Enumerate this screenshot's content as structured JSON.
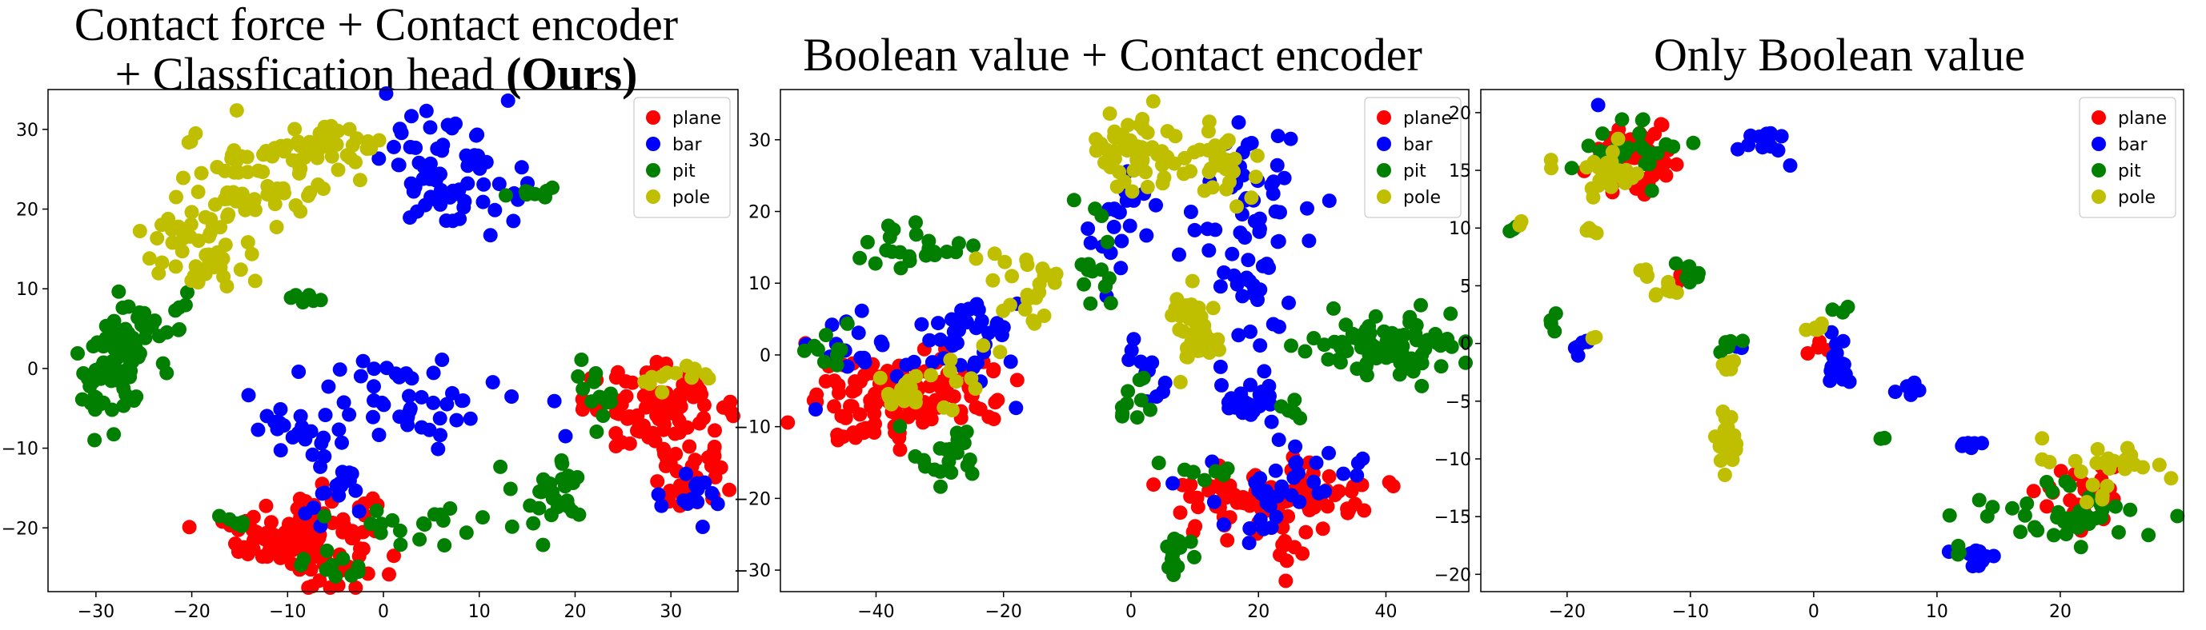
{
  "figure": {
    "panels_titles": [
      {
        "line1": "Contact force + Contact encoder",
        "line2_plain": "+ Classfication head ",
        "line2_bold": "(Ours)"
      },
      {
        "line1": "Boolean value + Contact encoder"
      },
      {
        "line1": "Only Boolean value"
      }
    ]
  },
  "chart_data": [
    {
      "type": "scatter",
      "title": "Contact force + Contact encoder + Classfication head (Ours)",
      "xlim": [
        -35,
        37
      ],
      "ylim": [
        -28,
        35
      ],
      "xticks": [
        -30,
        -20,
        -10,
        0,
        10,
        20,
        30
      ],
      "yticks": [
        -20,
        -10,
        0,
        10,
        20,
        30
      ],
      "legend": {
        "position": "upper-right",
        "entries": [
          "plane",
          "bar",
          "pit",
          "pole"
        ]
      },
      "series": [
        {
          "name": "plane",
          "color": "#ff0000",
          "clusters": [
            {
              "cx": -8,
              "cy": -21,
              "sx": 3.5,
              "sy": 3,
              "n": 120
            },
            {
              "cx": -15,
              "cy": -20,
              "sx": 1,
              "sy": 0.8,
              "n": 6
            },
            {
              "cx": 29,
              "cy": -5,
              "sx": 4,
              "sy": 2.5,
              "n": 90
            },
            {
              "cx": 32,
              "cy": -14,
              "sx": 2,
              "sy": 2,
              "n": 30
            }
          ]
        },
        {
          "name": "bar",
          "color": "#0000ff",
          "clusters": [
            {
              "cx": 7,
              "cy": 25,
              "sx": 3.5,
              "sy": 4,
              "n": 70
            },
            {
              "cx": 4,
              "cy": -4,
              "sx": 5,
              "sy": 2.5,
              "n": 45
            },
            {
              "cx": -10,
              "cy": -7,
              "sx": 2.5,
              "sy": 3,
              "n": 20
            },
            {
              "cx": -5,
              "cy": -17,
              "sx": 2,
              "sy": 3,
              "n": 18
            },
            {
              "cx": 32,
              "cy": -16,
              "sx": 2,
              "sy": 2,
              "n": 14
            }
          ]
        },
        {
          "name": "pit",
          "color": "#007f00",
          "clusters": [
            {
              "cx": -28,
              "cy": 0,
              "sx": 2,
              "sy": 4,
              "n": 70
            },
            {
              "cx": -23,
              "cy": 7,
              "sx": 2,
              "sy": 1.5,
              "n": 16
            },
            {
              "cx": 15,
              "cy": 22,
              "sx": 1.5,
              "sy": 0.5,
              "n": 10
            },
            {
              "cx": -8,
              "cy": 9,
              "sx": 1,
              "sy": 0.5,
              "n": 7
            },
            {
              "cx": 18,
              "cy": -15,
              "sx": 2,
              "sy": 2,
              "n": 30
            },
            {
              "cx": 22,
              "cy": -3,
              "sx": 2,
              "sy": 2,
              "n": 12
            },
            {
              "cx": 2,
              "cy": -19,
              "sx": 5,
              "sy": 1.5,
              "n": 20
            },
            {
              "cx": -5,
              "cy": -25,
              "sx": 2,
              "sy": 1,
              "n": 10
            },
            {
              "cx": -15,
              "cy": -19,
              "sx": 1,
              "sy": 0.5,
              "n": 5
            }
          ]
        },
        {
          "name": "pole",
          "color": "#bfbf00",
          "clusters": [
            {
              "cx": -13,
              "cy": 24,
              "sx": 4,
              "sy": 3,
              "n": 60
            },
            {
              "cx": -5,
              "cy": 28,
              "sx": 4,
              "sy": 1.5,
              "n": 30
            },
            {
              "cx": -19,
              "cy": 15,
              "sx": 3,
              "sy": 3,
              "n": 50
            },
            {
              "cx": 31,
              "cy": -1,
              "sx": 2,
              "sy": 1,
              "n": 12
            }
          ]
        }
      ]
    },
    {
      "type": "scatter",
      "title": "Boolean value + Contact encoder",
      "xlim": [
        -55,
        53
      ],
      "ylim": [
        -33,
        37
      ],
      "xticks": [
        -40,
        -20,
        0,
        20,
        40
      ],
      "yticks": [
        -30,
        -20,
        -10,
        0,
        10,
        20,
        30
      ],
      "legend": {
        "position": "upper-right",
        "entries": [
          "plane",
          "bar",
          "pit",
          "pole"
        ]
      },
      "series": [
        {
          "name": "plane",
          "color": "#ff0000",
          "clusters": [
            {
              "cx": -40,
              "cy": -7,
              "sx": 5,
              "sy": 3,
              "n": 80
            },
            {
              "cx": -27,
              "cy": -5,
              "sx": 4,
              "sy": 2.5,
              "n": 40
            },
            {
              "cx": 22,
              "cy": -20,
              "sx": 8,
              "sy": 2.5,
              "n": 90
            },
            {
              "cx": 24,
              "cy": -27,
              "sx": 2,
              "sy": 2,
              "n": 10
            }
          ]
        },
        {
          "name": "bar",
          "color": "#0000ff",
          "clusters": [
            {
              "cx": -26,
              "cy": 3,
              "sx": 5,
              "sy": 4,
              "n": 40
            },
            {
              "cx": -44,
              "cy": 1,
              "sx": 3,
              "sy": 3,
              "n": 15
            },
            {
              "cx": 18,
              "cy": 15,
              "sx": 4,
              "sy": 8,
              "n": 70
            },
            {
              "cx": 20,
              "cy": -7,
              "sx": 3,
              "sy": 2,
              "n": 20
            },
            {
              "cx": -1,
              "cy": 19,
              "sx": 3,
              "sy": 4,
              "n": 20
            },
            {
              "cx": 2,
              "cy": -3,
              "sx": 2,
              "sy": 3,
              "n": 12
            },
            {
              "cx": 24,
              "cy": -18,
              "sx": 6,
              "sy": 3,
              "n": 30
            },
            {
              "cx": 20,
              "cy": -25,
              "sx": 2,
              "sy": 1,
              "n": 6
            }
          ]
        },
        {
          "name": "pit",
          "color": "#007f00",
          "clusters": [
            {
              "cx": 40,
              "cy": 1,
              "sx": 6,
              "sy": 2.5,
              "n": 80
            },
            {
              "cx": -30,
              "cy": -14,
              "sx": 3,
              "sy": 2,
              "n": 20
            },
            {
              "cx": -37,
              "cy": 15,
              "sx": 3,
              "sy": 2,
              "n": 15
            },
            {
              "cx": -30,
              "cy": 15,
              "sx": 2,
              "sy": 1,
              "n": 8
            },
            {
              "cx": -5,
              "cy": 13,
              "sx": 1.5,
              "sy": 3,
              "n": 15
            },
            {
              "cx": 7,
              "cy": -28,
              "sx": 1.5,
              "sy": 2,
              "n": 15
            },
            {
              "cx": 0,
              "cy": -7,
              "sx": 2,
              "sy": 2,
              "n": 10
            },
            {
              "cx": 10,
              "cy": -16,
              "sx": 3,
              "sy": 1,
              "n": 8
            },
            {
              "cx": -47,
              "cy": 0,
              "sx": 2,
              "sy": 2,
              "n": 10
            },
            {
              "cx": 26,
              "cy": -8,
              "sx": 1,
              "sy": 1,
              "n": 5
            }
          ]
        },
        {
          "name": "pole",
          "color": "#bfbf00",
          "clusters": [
            {
              "cx": 0,
              "cy": 28,
              "sx": 4,
              "sy": 3,
              "n": 50
            },
            {
              "cx": 14,
              "cy": 26,
              "sx": 3,
              "sy": 3,
              "n": 30
            },
            {
              "cx": 10,
              "cy": 4,
              "sx": 2,
              "sy": 3,
              "n": 40
            },
            {
              "cx": -18,
              "cy": 9,
              "sx": 3,
              "sy": 3,
              "n": 25
            },
            {
              "cx": -36,
              "cy": -6,
              "sx": 3,
              "sy": 2,
              "n": 15
            },
            {
              "cx": -28,
              "cy": -4,
              "sx": 2,
              "sy": 2,
              "n": 8
            }
          ]
        }
      ]
    },
    {
      "type": "scatter",
      "title": "Only Boolean value",
      "xlim": [
        -27,
        30
      ],
      "ylim": [
        -21.5,
        22
      ],
      "xticks": [
        -20,
        -10,
        0,
        10,
        20
      ],
      "yticks": [
        -20,
        -15,
        -10,
        -5,
        0,
        5,
        10,
        15,
        20
      ],
      "legend": {
        "position": "upper-right",
        "entries": [
          "plane",
          "bar",
          "pit",
          "pole"
        ]
      },
      "series": [
        {
          "name": "plane",
          "color": "#ff0000",
          "clusters": [
            {
              "cx": -14,
              "cy": 15.5,
              "sx": 1.3,
              "sy": 1.5,
              "n": 60
            },
            {
              "cx": 21,
              "cy": -13.5,
              "sx": 3,
              "sy": 1.5,
              "n": 30
            },
            {
              "cx": 0.5,
              "cy": -0.5,
              "sx": 0.5,
              "sy": 0.5,
              "n": 4
            },
            {
              "cx": -11,
              "cy": 5.5,
              "sx": 0.3,
              "sy": 0.3,
              "n": 2
            }
          ]
        },
        {
          "name": "bar",
          "color": "#0000ff",
          "clusters": [
            {
              "cx": -4,
              "cy": 17.5,
              "sx": 0.8,
              "sy": 0.5,
              "n": 15
            },
            {
              "cx": 2,
              "cy": -2,
              "sx": 0.6,
              "sy": 1.2,
              "n": 20
            },
            {
              "cx": 8,
              "cy": -4,
              "sx": 0.6,
              "sy": 0.3,
              "n": 8
            },
            {
              "cx": 12.5,
              "cy": -8.7,
              "sx": 0.5,
              "sy": 0.2,
              "n": 6
            },
            {
              "cx": 13,
              "cy": -18.5,
              "sx": 0.6,
              "sy": 0.6,
              "n": 10
            },
            {
              "cx": -19,
              "cy": -0.3,
              "sx": 0.6,
              "sy": 0.3,
              "n": 6
            },
            {
              "cx": -17.5,
              "cy": 20.5,
              "sx": 0.1,
              "sy": 0.1,
              "n": 1
            },
            {
              "cx": -2,
              "cy": 15.5,
              "sx": 0.1,
              "sy": 0.1,
              "n": 1
            },
            {
              "cx": -6,
              "cy": -0.5,
              "sx": 0.2,
              "sy": 0.2,
              "n": 2
            }
          ]
        },
        {
          "name": "pit",
          "color": "#007f00",
          "clusters": [
            {
              "cx": -15,
              "cy": 16.5,
              "sx": 2,
              "sy": 1.5,
              "n": 25
            },
            {
              "cx": 20,
              "cy": -15,
              "sx": 3.5,
              "sy": 1.5,
              "n": 40
            },
            {
              "cx": -10,
              "cy": 6.5,
              "sx": 1,
              "sy": 1,
              "n": 8
            },
            {
              "cx": -7,
              "cy": 0,
              "sx": 0.5,
              "sy": 0.5,
              "n": 5
            },
            {
              "cx": 2,
              "cy": 3,
              "sx": 0.5,
              "sy": 0.3,
              "n": 3
            },
            {
              "cx": -24,
              "cy": 10,
              "sx": 0.3,
              "sy": 0.3,
              "n": 3
            },
            {
              "cx": -21,
              "cy": 1.5,
              "sx": 0.5,
              "sy": 0.5,
              "n": 4
            },
            {
              "cx": 6,
              "cy": -8.5,
              "sx": 0.3,
              "sy": 0.3,
              "n": 2
            },
            {
              "cx": 12,
              "cy": -18,
              "sx": 0.3,
              "sy": 0.5,
              "n": 3
            }
          ]
        },
        {
          "name": "pole",
          "color": "#bfbf00",
          "clusters": [
            {
              "cx": -16.5,
              "cy": 14.5,
              "sx": 1.2,
              "sy": 1.2,
              "n": 25
            },
            {
              "cx": -7,
              "cy": -8.5,
              "sx": 0.4,
              "sy": 1.5,
              "n": 20
            },
            {
              "cx": -12,
              "cy": 4.8,
              "sx": 0.6,
              "sy": 0.6,
              "n": 8
            },
            {
              "cx": -18,
              "cy": 9.8,
              "sx": 0.4,
              "sy": 0.2,
              "n": 4
            },
            {
              "cx": -7,
              "cy": -1.8,
              "sx": 0.3,
              "sy": 0.7,
              "n": 6
            },
            {
              "cx": 0,
              "cy": 1.2,
              "sx": 0.7,
              "sy": 0.3,
              "n": 6
            },
            {
              "cx": 24,
              "cy": -11,
              "sx": 2.5,
              "sy": 1.2,
              "n": 25
            },
            {
              "cx": -24,
              "cy": 10.5,
              "sx": 0.3,
              "sy": 0.3,
              "n": 2
            },
            {
              "cx": -21,
              "cy": 15.8,
              "sx": 0.3,
              "sy": 0.3,
              "n": 2
            },
            {
              "cx": -14,
              "cy": 6.5,
              "sx": 0.4,
              "sy": 0.3,
              "n": 4
            },
            {
              "cx": -18,
              "cy": 0.5,
              "sx": 0.2,
              "sy": 0.2,
              "n": 2
            }
          ]
        }
      ]
    }
  ]
}
